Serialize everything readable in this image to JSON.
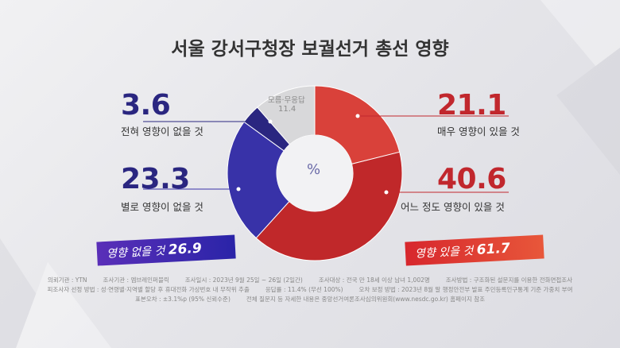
{
  "title": "서울 강서구청장 보궐선거 총선 영향",
  "chart_data": {
    "type": "pie",
    "center_label": "%",
    "slices": [
      {
        "label": "매우 영향이 있을 것",
        "value": 21.1,
        "color": "#d9413a"
      },
      {
        "label": "어느 정도 영향이 있을 것",
        "value": 40.6,
        "color": "#c0282a"
      },
      {
        "label": "별로 영향이 없을 것",
        "value": 23.3,
        "color": "#3832a8"
      },
      {
        "label": "전혀 영향이 없을 것",
        "value": 3.6,
        "color": "#2a2680"
      },
      {
        "label": "모름·무응답",
        "value": 11.4,
        "color": "#d8d8da"
      }
    ]
  },
  "labels": {
    "left_top_value": "3.6",
    "left_top_label": "전혀 영향이 없을 것",
    "left_bottom_value": "23.3",
    "left_bottom_label": "별로 영향이 없을 것",
    "right_top_value": "21.1",
    "right_top_label": "매우 영향이 있을 것",
    "right_bottom_value": "40.6",
    "right_bottom_label": "어느 정도 영향이 있을 것",
    "unknown_label": "모름·무응답",
    "unknown_value": "11.4"
  },
  "badges": {
    "no_effect_text": "영향 없을 것",
    "no_effect_value": "26.9",
    "effect_text": "영향 있을 것",
    "effect_value": "61.7"
  },
  "footer": {
    "line1": [
      "의뢰기관 : YTN",
      "조사기관 : 엠브레인퍼블릭",
      "조사일시 : 2023년 9월 25일 ~ 26일 (2일간)",
      "조사대상 : 전국 만 18세 이상 남녀 1,002명",
      "조사방법 : 구조화된 설문지를 이용한 전화면접조사"
    ],
    "line2": [
      "피조사자 선정 방법 : 성·연령별·지역별 할당 후 휴대전화 가상번호 내 무작위 추출",
      "응답률 : 11.4% (무선 100%)",
      "오차 보정 방법 : 2023년 8월 말 행정안전부 발표 주민등록인구통계 기준 가중치 부여"
    ],
    "line3": [
      "표본오차 : ±3.1%p (95% 신뢰수준)",
      "전체 질문지 등 자세한 내용은 중앙선거여론조사심의위원회(www.nesdc.go.kr) 홈페이지 참조"
    ]
  }
}
